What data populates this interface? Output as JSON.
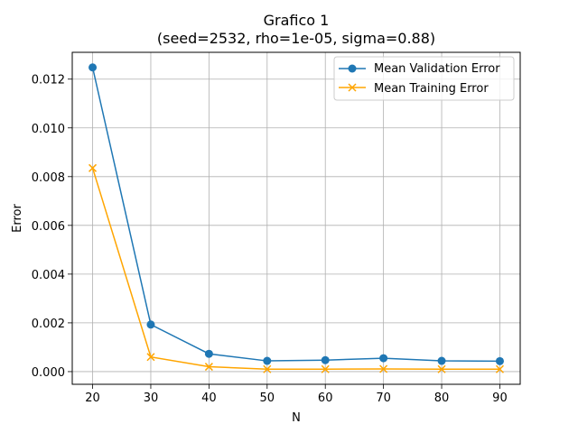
{
  "chart_data": {
    "type": "line",
    "title": "Grafico 1",
    "subtitle": "(seed=2532, rho=1e-05, sigma=0.88)",
    "xlabel": "N",
    "ylabel": "Error",
    "x": [
      20,
      30,
      40,
      50,
      60,
      70,
      80,
      90
    ],
    "xlim": [
      16.5,
      93.5
    ],
    "ylim": [
      -0.00052,
      0.0131
    ],
    "xticks": [
      20,
      30,
      40,
      50,
      60,
      70,
      80,
      90
    ],
    "yticks": [
      0.0,
      0.002,
      0.004,
      0.006,
      0.008,
      0.01,
      0.012
    ],
    "ytick_labels": [
      "0.000",
      "0.002",
      "0.004",
      "0.006",
      "0.008",
      "0.010",
      "0.012"
    ],
    "grid": true,
    "legend_position": "top-right",
    "series": [
      {
        "name": "Mean Validation Error",
        "color": "#1f77b4",
        "marker": "circle",
        "values": [
          0.01248,
          0.00193,
          0.00073,
          0.00044,
          0.00047,
          0.00055,
          0.00044,
          0.00043
        ]
      },
      {
        "name": "Mean Training Error",
        "color": "#ffa500",
        "marker": "x",
        "values": [
          0.00835,
          0.0006,
          0.0002,
          0.0001,
          0.0001,
          0.00011,
          0.0001,
          0.0001
        ]
      }
    ]
  }
}
